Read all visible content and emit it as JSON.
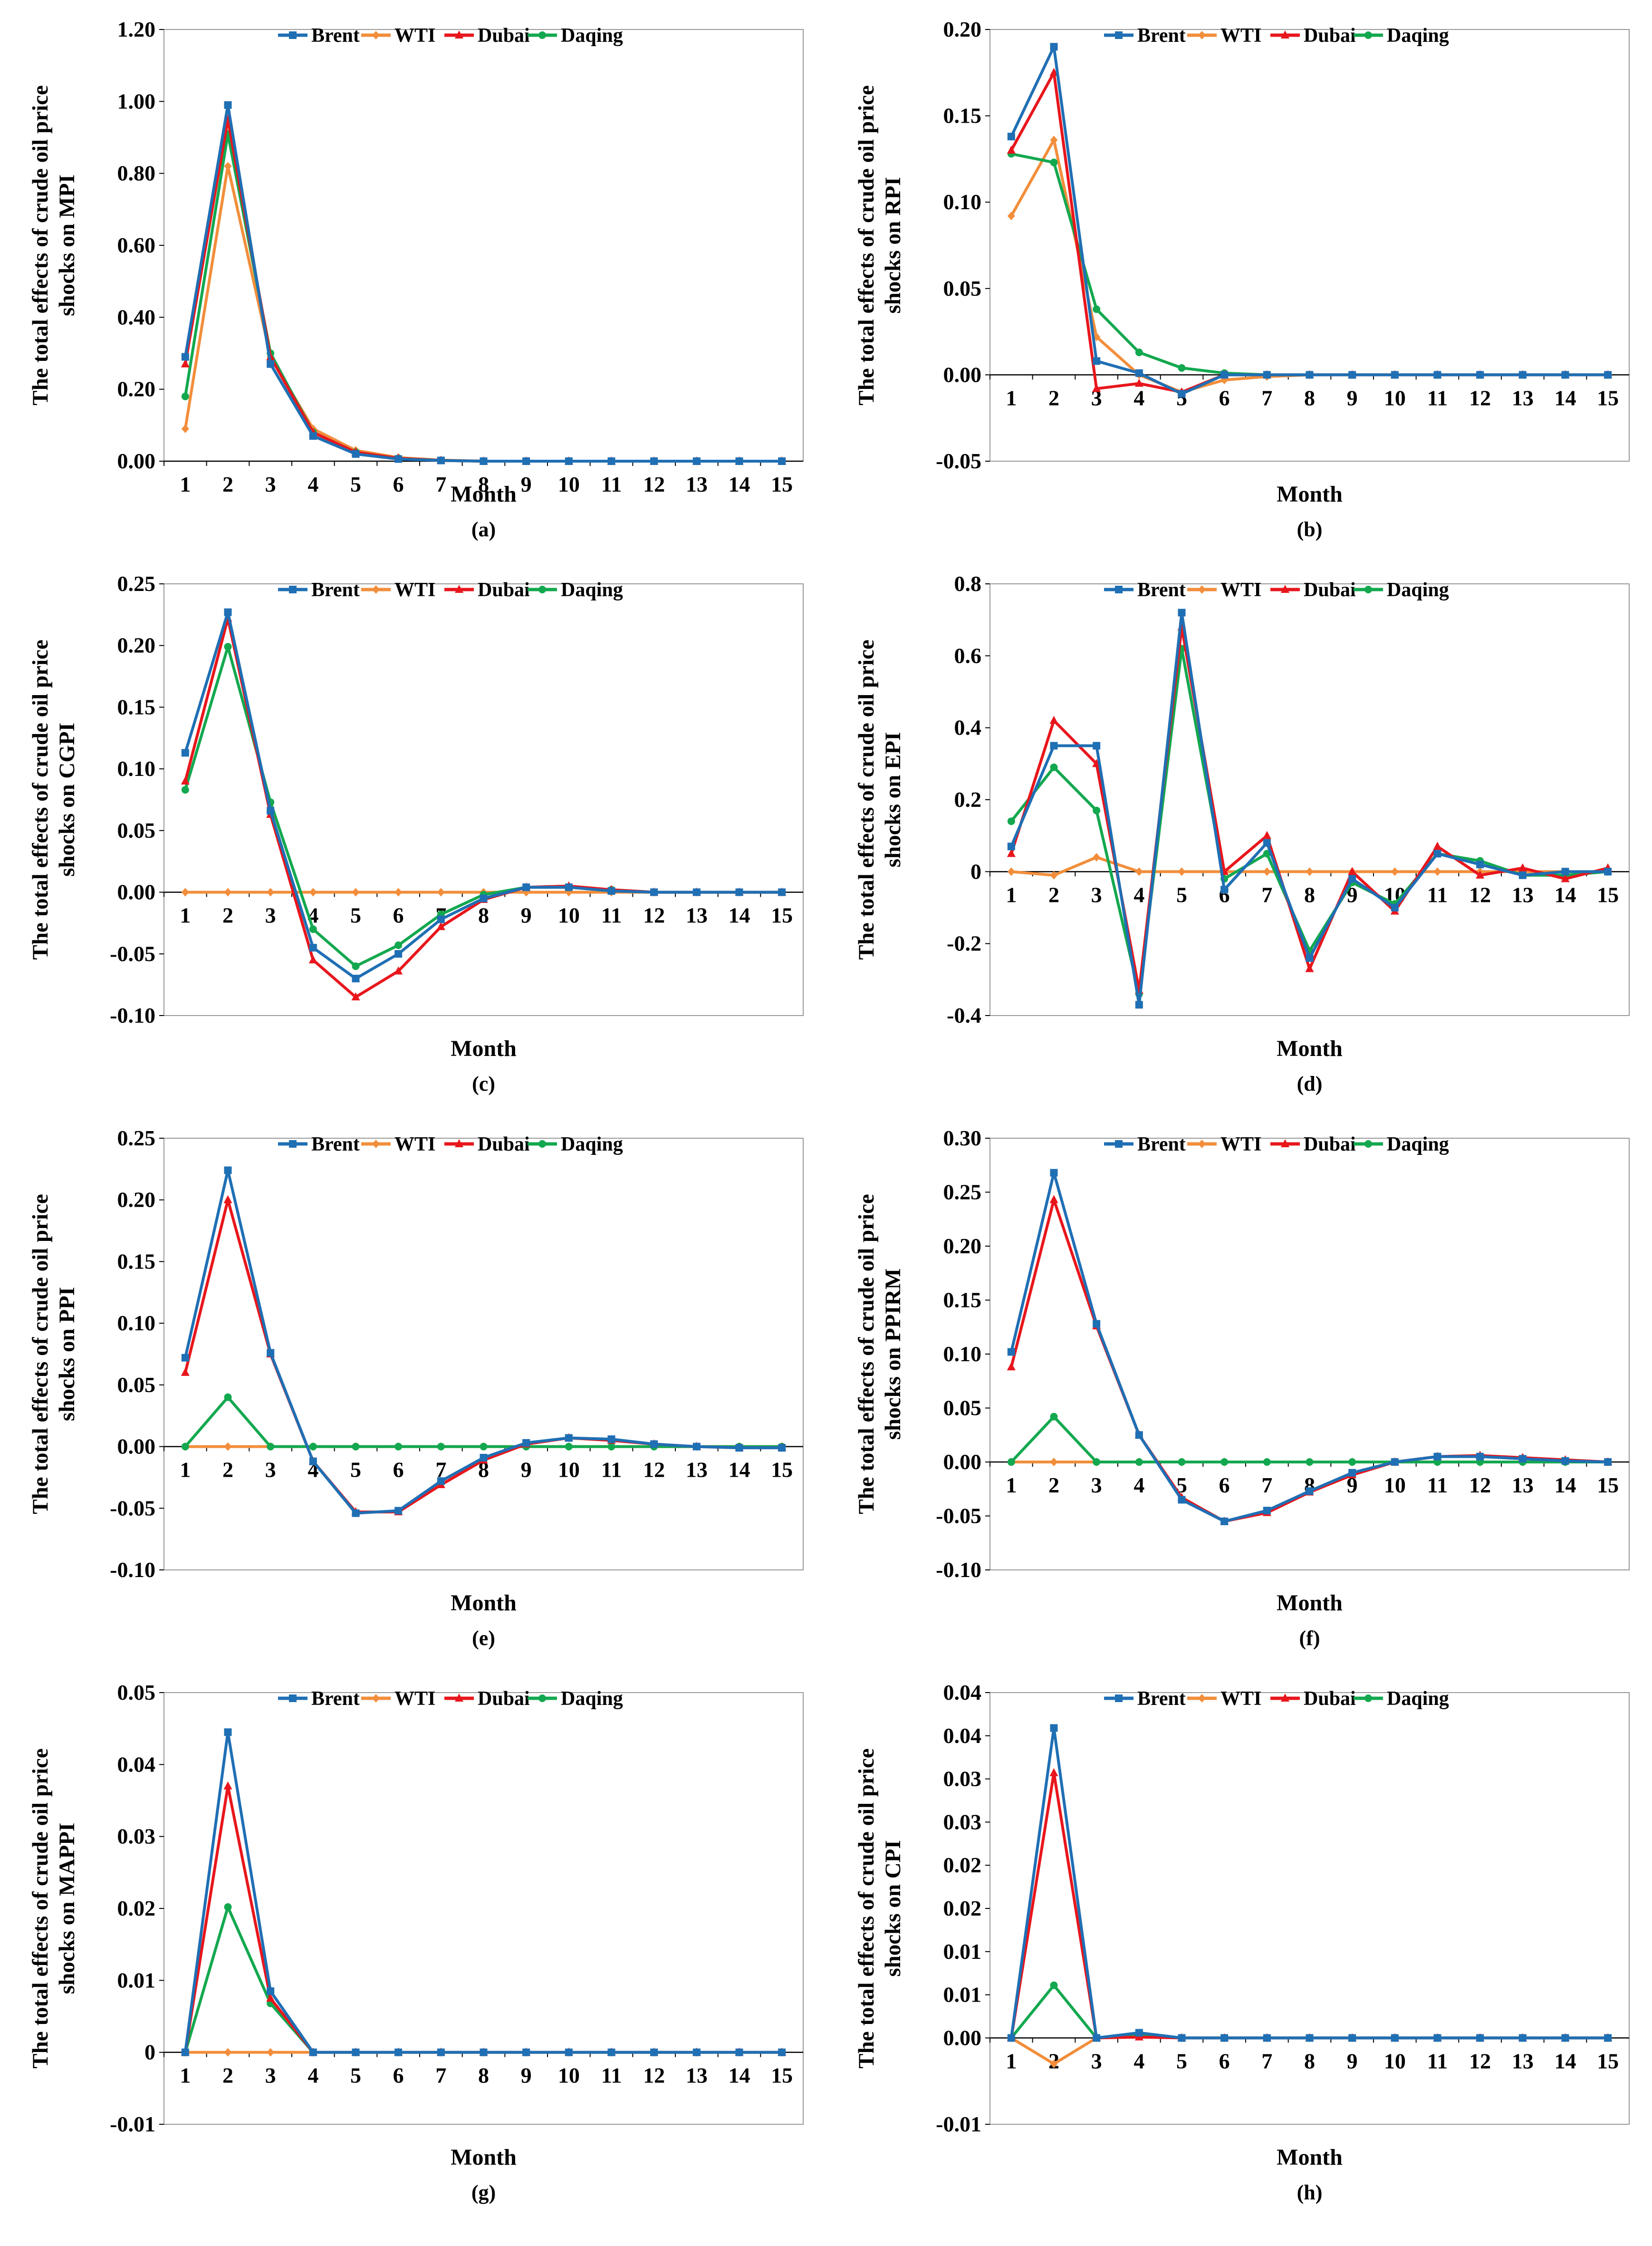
{
  "colors": {
    "Brent": "#1f6fb4",
    "WTI": "#f28e3b",
    "Dubai": "#e8161c",
    "Daqing": "#13a84f"
  },
  "chart_data": [
    {
      "type": "line",
      "panel": "(a)",
      "title": "",
      "xlabel": "Month",
      "ylabel": "The total effects of crude oil price shocks on MPI",
      "ylim": [
        0,
        1.2
      ],
      "yticks": [
        0,
        0.2,
        0.4,
        0.6,
        0.8,
        1.0,
        1.2
      ],
      "yticklabels": [
        "0.00",
        "0.20",
        "0.40",
        "0.60",
        "0.80",
        "1.00",
        "1.20"
      ],
      "categories": [
        "1",
        "2",
        "3",
        "4",
        "5",
        "6",
        "7",
        "8",
        "9",
        "10",
        "11",
        "12",
        "13",
        "14",
        "15"
      ],
      "series": [
        {
          "name": "Brent",
          "values": [
            0.29,
            0.99,
            0.27,
            0.07,
            0.02,
            0.006,
            0.002,
            0,
            0,
            0,
            0,
            0,
            0,
            0,
            0
          ]
        },
        {
          "name": "WTI",
          "values": [
            0.09,
            0.82,
            0.29,
            0.09,
            0.03,
            0.01,
            0.003,
            0,
            0,
            0,
            0,
            0,
            0,
            0,
            0
          ]
        },
        {
          "name": "Dubai",
          "values": [
            0.27,
            0.95,
            0.29,
            0.08,
            0.025,
            0.008,
            0.002,
            0,
            0,
            0,
            0,
            0,
            0,
            0,
            0
          ]
        },
        {
          "name": "Daqing",
          "values": [
            0.18,
            0.91,
            0.3,
            0.08,
            0.025,
            0.008,
            0.002,
            0,
            0,
            0,
            0,
            0,
            0,
            0,
            0
          ]
        }
      ]
    },
    {
      "type": "line",
      "panel": "(b)",
      "title": "",
      "xlabel": "Month",
      "ylabel": "The total effects of crude oil price shocks on RPI",
      "ylim": [
        -0.05,
        0.2
      ],
      "yticks": [
        -0.05,
        0,
        0.05,
        0.1,
        0.15,
        0.2
      ],
      "yticklabels": [
        "-0.05",
        "0.00",
        "0.05",
        "0.10",
        "0.15",
        "0.20"
      ],
      "categories": [
        "1",
        "2",
        "3",
        "4",
        "5",
        "6",
        "7",
        "8",
        "9",
        "10",
        "11",
        "12",
        "13",
        "14",
        "15"
      ],
      "series": [
        {
          "name": "Brent",
          "values": [
            0.138,
            0.19,
            0.008,
            0.001,
            -0.011,
            0.0,
            0.0,
            0.0,
            0,
            0,
            0,
            0,
            0,
            0,
            0
          ]
        },
        {
          "name": "WTI",
          "values": [
            0.092,
            0.136,
            0.022,
            0.0,
            -0.01,
            -0.003,
            -0.001,
            0.0,
            0,
            0,
            0,
            0,
            0,
            0,
            0
          ]
        },
        {
          "name": "Dubai",
          "values": [
            0.13,
            0.175,
            -0.008,
            -0.005,
            -0.01,
            0.0,
            0.0,
            0.0,
            0,
            0,
            0,
            0,
            0,
            0,
            0
          ]
        },
        {
          "name": "Daqing",
          "values": [
            0.128,
            0.123,
            0.038,
            0.013,
            0.004,
            0.001,
            0.0,
            0.0,
            0,
            0,
            0,
            0,
            0,
            0,
            0
          ]
        }
      ]
    },
    {
      "type": "line",
      "panel": "(c)",
      "title": "",
      "xlabel": "Month",
      "ylabel": "The total effects of crude oil price shocks on CGPI",
      "ylim": [
        -0.1,
        0.25
      ],
      "yticks": [
        -0.1,
        -0.05,
        0,
        0.05,
        0.1,
        0.15,
        0.2,
        0.25
      ],
      "yticklabels": [
        "-0.10",
        "-0.05",
        "0.00",
        "0.05",
        "0.10",
        "0.15",
        "0.20",
        "0.25"
      ],
      "categories": [
        "1",
        "2",
        "3",
        "4",
        "5",
        "6",
        "7",
        "8",
        "9",
        "10",
        "11",
        "12",
        "13",
        "14",
        "15"
      ],
      "series": [
        {
          "name": "Brent",
          "values": [
            0.113,
            0.227,
            0.066,
            -0.045,
            -0.07,
            -0.05,
            -0.022,
            -0.005,
            0.004,
            0.004,
            0.001,
            0,
            0,
            0,
            0
          ]
        },
        {
          "name": "WTI",
          "values": [
            0,
            0,
            0,
            0,
            0,
            0,
            0,
            0,
            0,
            0,
            0,
            0,
            0,
            0,
            0
          ]
        },
        {
          "name": "Dubai",
          "values": [
            0.09,
            0.222,
            0.063,
            -0.055,
            -0.085,
            -0.064,
            -0.028,
            -0.006,
            0.004,
            0.005,
            0.002,
            0,
            0,
            0,
            0
          ]
        },
        {
          "name": "Daqing",
          "values": [
            0.083,
            0.199,
            0.073,
            -0.03,
            -0.06,
            -0.043,
            -0.018,
            -0.002,
            0.004,
            0.004,
            0.002,
            0,
            0,
            0,
            0
          ]
        }
      ]
    },
    {
      "type": "line",
      "panel": "(d)",
      "title": "",
      "xlabel": "Month",
      "ylabel": "The total effects of crude oil price shocks on EPI",
      "ylim": [
        -0.4,
        0.8
      ],
      "yticks": [
        -0.4,
        -0.2,
        0,
        0.2,
        0.4,
        0.6,
        0.8
      ],
      "yticklabels": [
        "-0.4",
        "-0.2",
        "0",
        "0.2",
        "0.4",
        "0.6",
        "0.8"
      ],
      "categories": [
        "1",
        "2",
        "3",
        "4",
        "5",
        "6",
        "7",
        "8",
        "9",
        "10",
        "11",
        "12",
        "13",
        "14",
        "15"
      ],
      "series": [
        {
          "name": "Brent",
          "values": [
            0.07,
            0.35,
            0.35,
            -0.37,
            0.72,
            -0.05,
            0.08,
            -0.24,
            -0.02,
            -0.1,
            0.05,
            0.02,
            -0.01,
            0.0,
            0.0
          ]
        },
        {
          "name": "WTI",
          "values": [
            0.0,
            -0.01,
            0.04,
            0.0,
            0.0,
            0.0,
            0.0,
            0.0,
            0.0,
            0.0,
            0.0,
            0.0,
            0.0,
            0.0,
            0.0
          ]
        },
        {
          "name": "Dubai",
          "values": [
            0.05,
            0.42,
            0.3,
            -0.33,
            0.68,
            0.0,
            0.1,
            -0.27,
            0.0,
            -0.11,
            0.07,
            -0.01,
            0.01,
            -0.02,
            0.01
          ]
        },
        {
          "name": "Daqing",
          "values": [
            0.14,
            0.29,
            0.17,
            -0.34,
            0.62,
            -0.02,
            0.05,
            -0.22,
            -0.03,
            -0.09,
            0.05,
            0.03,
            -0.01,
            -0.01,
            0.0
          ]
        }
      ]
    },
    {
      "type": "line",
      "panel": "(e)",
      "title": "",
      "xlabel": "Month",
      "ylabel": "The total effects of crude oil price shocks on PPI",
      "ylim": [
        -0.1,
        0.25
      ],
      "yticks": [
        -0.1,
        -0.05,
        0,
        0.05,
        0.1,
        0.15,
        0.2,
        0.25
      ],
      "yticklabels": [
        "-0.10",
        "-0.05",
        "0.00",
        "0.05",
        "0.10",
        "0.15",
        "0.20",
        "0.25"
      ],
      "categories": [
        "1",
        "2",
        "3",
        "4",
        "5",
        "6",
        "7",
        "8",
        "9",
        "10",
        "11",
        "12",
        "13",
        "14",
        "15"
      ],
      "series": [
        {
          "name": "Brent",
          "values": [
            0.072,
            0.224,
            0.076,
            -0.012,
            -0.054,
            -0.052,
            -0.028,
            -0.009,
            0.003,
            0.007,
            0.006,
            0.002,
            0.0,
            -0.001,
            -0.001
          ]
        },
        {
          "name": "WTI",
          "values": [
            0,
            0,
            0,
            0,
            0,
            0,
            0,
            0,
            0,
            0,
            0,
            0,
            0,
            0,
            0
          ]
        },
        {
          "name": "Dubai",
          "values": [
            0.06,
            0.2,
            0.075,
            -0.012,
            -0.053,
            -0.053,
            -0.031,
            -0.011,
            0.002,
            0.007,
            0.005,
            0.002,
            0.0,
            -0.001,
            -0.001
          ]
        },
        {
          "name": "Daqing",
          "values": [
            0,
            0.04,
            0,
            0,
            0,
            0,
            0,
            0,
            0,
            0,
            0,
            0,
            0,
            0,
            0
          ]
        }
      ]
    },
    {
      "type": "line",
      "panel": "(f)",
      "title": "",
      "xlabel": "Month",
      "ylabel": "The total effects of crude oil price shocks on PPIRM",
      "ylim": [
        -0.1,
        0.3
      ],
      "yticks": [
        -0.1,
        -0.05,
        0,
        0.05,
        0.1,
        0.15,
        0.2,
        0.25,
        0.3
      ],
      "yticklabels": [
        "-0.10",
        "-0.05",
        "0.00",
        "0.05",
        "0.10",
        "0.15",
        "0.20",
        "0.25",
        "0.30"
      ],
      "categories": [
        "1",
        "2",
        "3",
        "4",
        "5",
        "6",
        "7",
        "8",
        "9",
        "10",
        "11",
        "12",
        "13",
        "14",
        "15"
      ],
      "series": [
        {
          "name": "Brent",
          "values": [
            0.102,
            0.268,
            0.128,
            0.025,
            -0.035,
            -0.055,
            -0.045,
            -0.027,
            -0.01,
            0.0,
            0.005,
            0.005,
            0.003,
            0.001,
            0.0
          ]
        },
        {
          "name": "WTI",
          "values": [
            0,
            0,
            0,
            0,
            0,
            0,
            0,
            0,
            0,
            0,
            0,
            0,
            0,
            0,
            0
          ]
        },
        {
          "name": "Dubai",
          "values": [
            0.088,
            0.243,
            0.126,
            0.025,
            -0.033,
            -0.055,
            -0.047,
            -0.028,
            -0.012,
            0.0,
            0.005,
            0.006,
            0.004,
            0.002,
            0.0
          ]
        },
        {
          "name": "Daqing",
          "values": [
            0,
            0.042,
            0,
            0,
            0,
            0,
            0,
            0,
            0,
            0,
            0,
            0,
            0,
            0,
            0
          ]
        }
      ]
    },
    {
      "type": "line",
      "panel": "(g)",
      "title": "",
      "xlabel": "Month",
      "ylabel": "The total effects of crude oil price shocks on MAPPI",
      "ylim": [
        -0.01,
        0.05
      ],
      "yticks": [
        -0.01,
        0,
        0.01,
        0.02,
        0.03,
        0.04,
        0.05
      ],
      "yticklabels": [
        "-0.01",
        "0",
        "0.01",
        "0.02",
        "0.03",
        "0.04",
        "0.05"
      ],
      "categories": [
        "1",
        "2",
        "3",
        "4",
        "5",
        "6",
        "7",
        "8",
        "9",
        "10",
        "11",
        "12",
        "13",
        "14",
        "15"
      ],
      "series": [
        {
          "name": "Brent",
          "values": [
            0,
            0.0445,
            0.0085,
            0,
            0,
            0,
            0,
            0,
            0,
            0,
            0,
            0,
            0,
            0,
            0
          ]
        },
        {
          "name": "WTI",
          "values": [
            0,
            0,
            0,
            0,
            0,
            0,
            0,
            0,
            0,
            0,
            0,
            0,
            0,
            0,
            0
          ]
        },
        {
          "name": "Dubai",
          "values": [
            0,
            0.037,
            0.0075,
            0,
            0,
            0,
            0,
            0,
            0,
            0,
            0,
            0,
            0,
            0,
            0
          ]
        },
        {
          "name": "Daqing",
          "values": [
            0,
            0.0202,
            0.0068,
            0,
            0,
            0,
            0,
            0,
            0,
            0,
            0,
            0,
            0,
            0,
            0
          ]
        }
      ]
    },
    {
      "type": "line",
      "panel": "(h)",
      "title": "",
      "xlabel": "Month",
      "ylabel": "The total effects of crude oil price shocks on CPI",
      "ylim": [
        -0.01,
        0.04
      ],
      "yticks": [
        -0.01,
        0,
        0.005,
        0.01,
        0.015,
        0.02,
        0.025,
        0.03,
        0.035,
        0.04
      ],
      "yticklabels": [
        "-0.01",
        "0.00",
        "0.01",
        "0.01",
        "0.02",
        "0.02",
        "0.03",
        "0.03",
        "0.04",
        "0.04"
      ],
      "categories": [
        "1",
        "2",
        "3",
        "4",
        "5",
        "6",
        "7",
        "8",
        "9",
        "10",
        "11",
        "12",
        "13",
        "14",
        "15"
      ],
      "series": [
        {
          "name": "Brent",
          "values": [
            0,
            0.0359,
            0,
            0.0006,
            0,
            0,
            0,
            0,
            0,
            0,
            0,
            0,
            0,
            0,
            0
          ]
        },
        {
          "name": "WTI",
          "values": [
            0,
            -0.003,
            0,
            0.0002,
            0,
            0,
            0,
            0,
            0,
            0,
            0,
            0,
            0,
            0,
            0
          ]
        },
        {
          "name": "Dubai",
          "values": [
            0,
            0.0307,
            0,
            0.0001,
            0,
            0,
            0,
            0,
            0,
            0,
            0,
            0,
            0,
            0,
            0
          ]
        },
        {
          "name": "Daqing",
          "values": [
            0,
            0.0061,
            0,
            0.0004,
            0,
            0,
            0,
            0,
            0,
            0,
            0,
            0,
            0,
            0,
            0
          ]
        }
      ]
    }
  ]
}
